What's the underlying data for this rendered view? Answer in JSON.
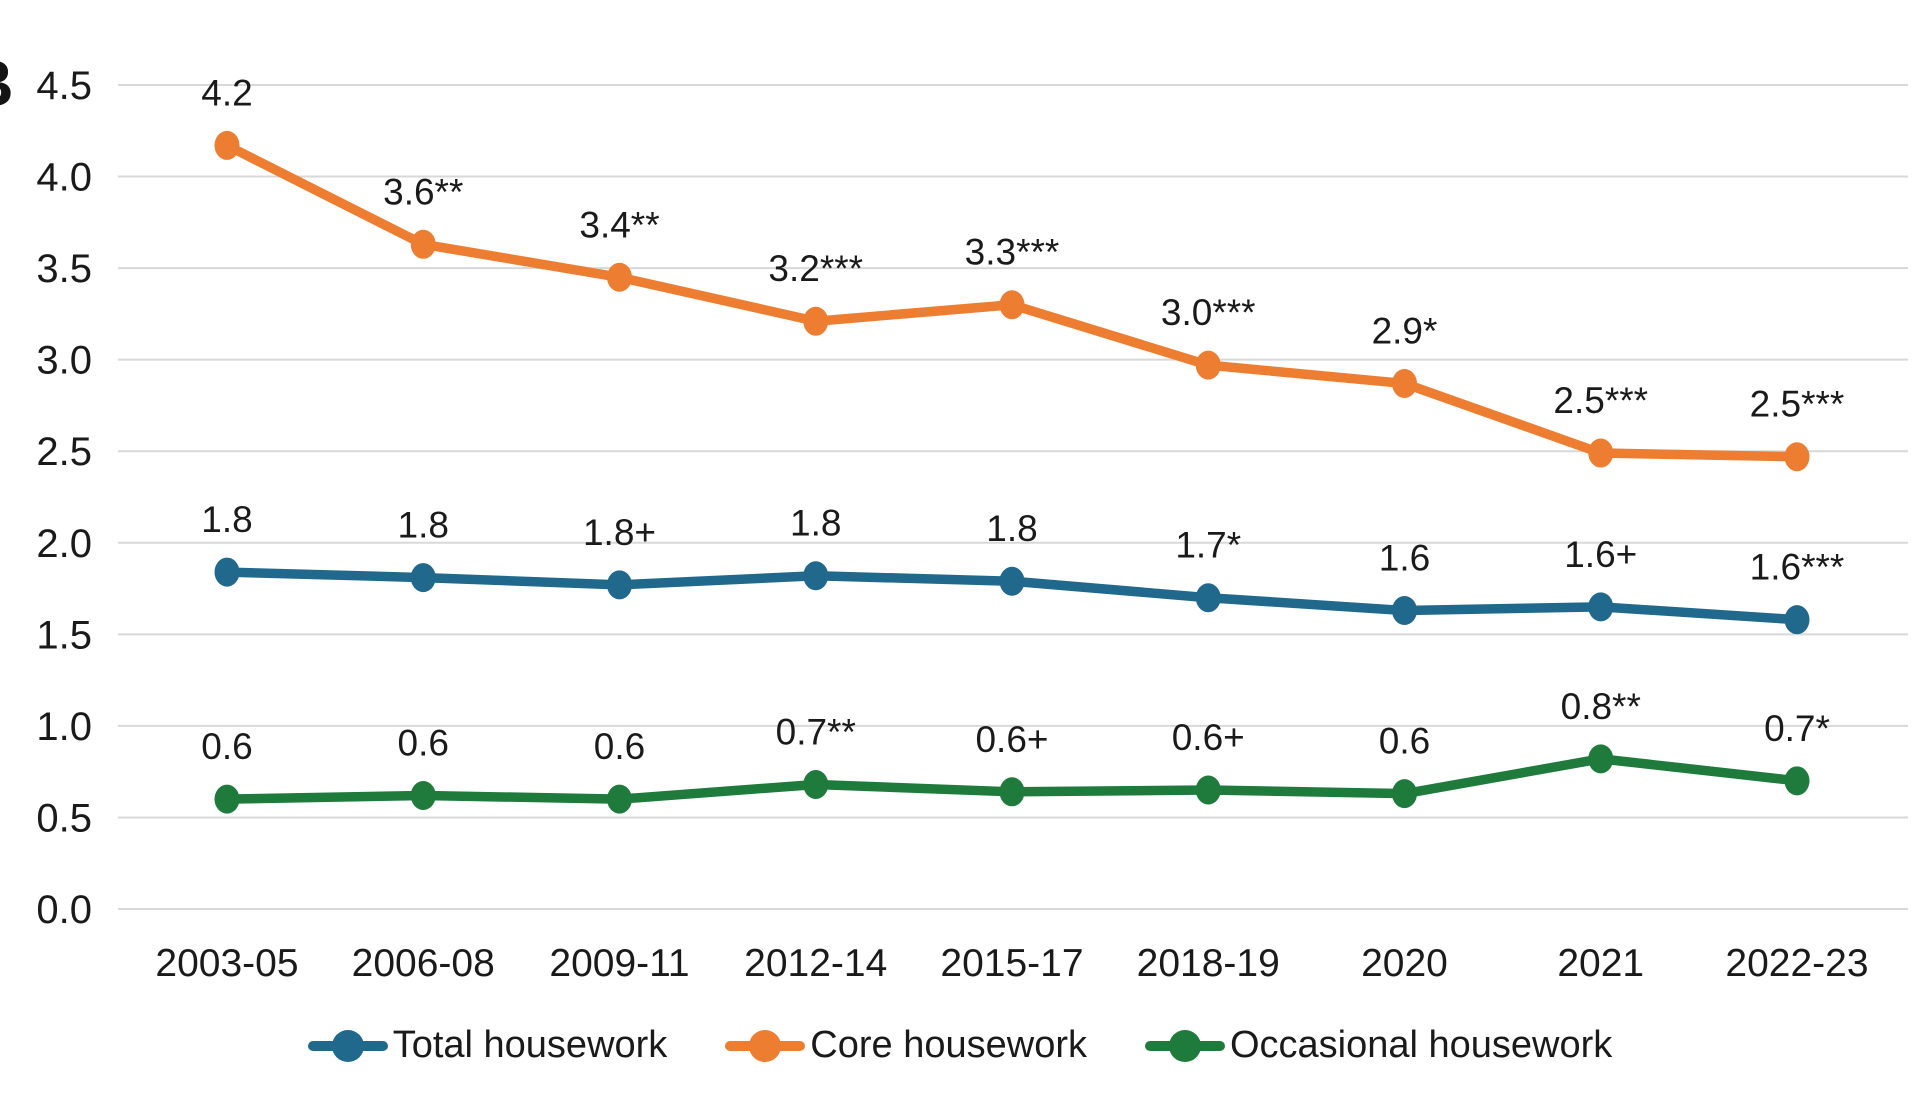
{
  "panel_label": "B",
  "colors": {
    "total": "#21698C",
    "core": "#ED7D31",
    "occasional": "#1E7B3C",
    "grid": "#D8D8D8",
    "text": "#1A1A1A"
  },
  "chart_data": {
    "type": "line",
    "title": "",
    "xlabel": "",
    "ylabel": "",
    "categories": [
      "2003-05",
      "2006-08",
      "2009-11",
      "2012-14",
      "2015-17",
      "2018-19",
      "2020",
      "2021",
      "2022-23"
    ],
    "yticks": [
      "4.5",
      "4.0",
      "3.5",
      "3.0",
      "2.5",
      "2.0",
      "1.5",
      "1.0",
      "0.5",
      "0.0"
    ],
    "ylim": [
      0,
      4.5
    ],
    "grid": true,
    "legend_position": "bottom",
    "series": [
      {
        "name": "Total housework",
        "color_key": "total",
        "values": [
          1.84,
          1.81,
          1.77,
          1.82,
          1.79,
          1.7,
          1.63,
          1.65,
          1.58
        ],
        "point_labels": [
          "1.8",
          "1.8",
          "1.8+",
          "1.8",
          "1.8",
          "1.7*",
          "1.6",
          "1.6+",
          "1.6***"
        ]
      },
      {
        "name": "Core housework",
        "color_key": "core",
        "values": [
          4.17,
          3.63,
          3.45,
          3.21,
          3.3,
          2.97,
          2.87,
          2.49,
          2.47
        ],
        "point_labels": [
          "4.2",
          "3.6**",
          "3.4**",
          "3.2***",
          "3.3***",
          "3.0***",
          "2.9*",
          "2.5***",
          "2.5***"
        ]
      },
      {
        "name": "Occasional housework",
        "color_key": "occasional",
        "values": [
          0.6,
          0.62,
          0.6,
          0.68,
          0.64,
          0.65,
          0.63,
          0.82,
          0.7
        ],
        "point_labels": [
          "0.6",
          "0.6",
          "0.6",
          "0.7**",
          "0.6+",
          "0.6+",
          "0.6",
          "0.8**",
          "0.7*"
        ]
      }
    ]
  }
}
